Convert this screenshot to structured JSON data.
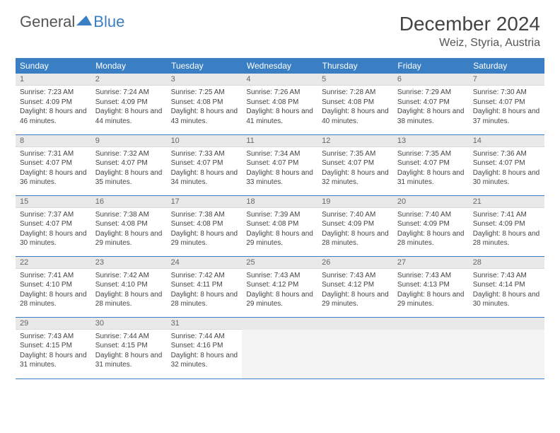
{
  "logo": {
    "general": "General",
    "blue": "Blue"
  },
  "title": "December 2024",
  "location": "Weiz, Styria, Austria",
  "weekdays": [
    "Sunday",
    "Monday",
    "Tuesday",
    "Wednesday",
    "Thursday",
    "Friday",
    "Saturday"
  ],
  "colors": {
    "header_bg": "#3a7fc4",
    "header_text": "#ffffff",
    "daynum_bg": "#e9e9e9",
    "cell_border": "#3a7fc4",
    "logo_blue": "#3a7fc4"
  },
  "weeks": [
    [
      {
        "n": "1",
        "sunrise": "Sunrise: 7:23 AM",
        "sunset": "Sunset: 4:09 PM",
        "daylight": "Daylight: 8 hours and 46 minutes."
      },
      {
        "n": "2",
        "sunrise": "Sunrise: 7:24 AM",
        "sunset": "Sunset: 4:09 PM",
        "daylight": "Daylight: 8 hours and 44 minutes."
      },
      {
        "n": "3",
        "sunrise": "Sunrise: 7:25 AM",
        "sunset": "Sunset: 4:08 PM",
        "daylight": "Daylight: 8 hours and 43 minutes."
      },
      {
        "n": "4",
        "sunrise": "Sunrise: 7:26 AM",
        "sunset": "Sunset: 4:08 PM",
        "daylight": "Daylight: 8 hours and 41 minutes."
      },
      {
        "n": "5",
        "sunrise": "Sunrise: 7:28 AM",
        "sunset": "Sunset: 4:08 PM",
        "daylight": "Daylight: 8 hours and 40 minutes."
      },
      {
        "n": "6",
        "sunrise": "Sunrise: 7:29 AM",
        "sunset": "Sunset: 4:07 PM",
        "daylight": "Daylight: 8 hours and 38 minutes."
      },
      {
        "n": "7",
        "sunrise": "Sunrise: 7:30 AM",
        "sunset": "Sunset: 4:07 PM",
        "daylight": "Daylight: 8 hours and 37 minutes."
      }
    ],
    [
      {
        "n": "8",
        "sunrise": "Sunrise: 7:31 AM",
        "sunset": "Sunset: 4:07 PM",
        "daylight": "Daylight: 8 hours and 36 minutes."
      },
      {
        "n": "9",
        "sunrise": "Sunrise: 7:32 AM",
        "sunset": "Sunset: 4:07 PM",
        "daylight": "Daylight: 8 hours and 35 minutes."
      },
      {
        "n": "10",
        "sunrise": "Sunrise: 7:33 AM",
        "sunset": "Sunset: 4:07 PM",
        "daylight": "Daylight: 8 hours and 34 minutes."
      },
      {
        "n": "11",
        "sunrise": "Sunrise: 7:34 AM",
        "sunset": "Sunset: 4:07 PM",
        "daylight": "Daylight: 8 hours and 33 minutes."
      },
      {
        "n": "12",
        "sunrise": "Sunrise: 7:35 AM",
        "sunset": "Sunset: 4:07 PM",
        "daylight": "Daylight: 8 hours and 32 minutes."
      },
      {
        "n": "13",
        "sunrise": "Sunrise: 7:35 AM",
        "sunset": "Sunset: 4:07 PM",
        "daylight": "Daylight: 8 hours and 31 minutes."
      },
      {
        "n": "14",
        "sunrise": "Sunrise: 7:36 AM",
        "sunset": "Sunset: 4:07 PM",
        "daylight": "Daylight: 8 hours and 30 minutes."
      }
    ],
    [
      {
        "n": "15",
        "sunrise": "Sunrise: 7:37 AM",
        "sunset": "Sunset: 4:07 PM",
        "daylight": "Daylight: 8 hours and 30 minutes."
      },
      {
        "n": "16",
        "sunrise": "Sunrise: 7:38 AM",
        "sunset": "Sunset: 4:08 PM",
        "daylight": "Daylight: 8 hours and 29 minutes."
      },
      {
        "n": "17",
        "sunrise": "Sunrise: 7:38 AM",
        "sunset": "Sunset: 4:08 PM",
        "daylight": "Daylight: 8 hours and 29 minutes."
      },
      {
        "n": "18",
        "sunrise": "Sunrise: 7:39 AM",
        "sunset": "Sunset: 4:08 PM",
        "daylight": "Daylight: 8 hours and 29 minutes."
      },
      {
        "n": "19",
        "sunrise": "Sunrise: 7:40 AM",
        "sunset": "Sunset: 4:09 PM",
        "daylight": "Daylight: 8 hours and 28 minutes."
      },
      {
        "n": "20",
        "sunrise": "Sunrise: 7:40 AM",
        "sunset": "Sunset: 4:09 PM",
        "daylight": "Daylight: 8 hours and 28 minutes."
      },
      {
        "n": "21",
        "sunrise": "Sunrise: 7:41 AM",
        "sunset": "Sunset: 4:09 PM",
        "daylight": "Daylight: 8 hours and 28 minutes."
      }
    ],
    [
      {
        "n": "22",
        "sunrise": "Sunrise: 7:41 AM",
        "sunset": "Sunset: 4:10 PM",
        "daylight": "Daylight: 8 hours and 28 minutes."
      },
      {
        "n": "23",
        "sunrise": "Sunrise: 7:42 AM",
        "sunset": "Sunset: 4:10 PM",
        "daylight": "Daylight: 8 hours and 28 minutes."
      },
      {
        "n": "24",
        "sunrise": "Sunrise: 7:42 AM",
        "sunset": "Sunset: 4:11 PM",
        "daylight": "Daylight: 8 hours and 28 minutes."
      },
      {
        "n": "25",
        "sunrise": "Sunrise: 7:43 AM",
        "sunset": "Sunset: 4:12 PM",
        "daylight": "Daylight: 8 hours and 29 minutes."
      },
      {
        "n": "26",
        "sunrise": "Sunrise: 7:43 AM",
        "sunset": "Sunset: 4:12 PM",
        "daylight": "Daylight: 8 hours and 29 minutes."
      },
      {
        "n": "27",
        "sunrise": "Sunrise: 7:43 AM",
        "sunset": "Sunset: 4:13 PM",
        "daylight": "Daylight: 8 hours and 29 minutes."
      },
      {
        "n": "28",
        "sunrise": "Sunrise: 7:43 AM",
        "sunset": "Sunset: 4:14 PM",
        "daylight": "Daylight: 8 hours and 30 minutes."
      }
    ],
    [
      {
        "n": "29",
        "sunrise": "Sunrise: 7:43 AM",
        "sunset": "Sunset: 4:15 PM",
        "daylight": "Daylight: 8 hours and 31 minutes."
      },
      {
        "n": "30",
        "sunrise": "Sunrise: 7:44 AM",
        "sunset": "Sunset: 4:15 PM",
        "daylight": "Daylight: 8 hours and 31 minutes."
      },
      {
        "n": "31",
        "sunrise": "Sunrise: 7:44 AM",
        "sunset": "Sunset: 4:16 PM",
        "daylight": "Daylight: 8 hours and 32 minutes."
      },
      null,
      null,
      null,
      null
    ]
  ]
}
